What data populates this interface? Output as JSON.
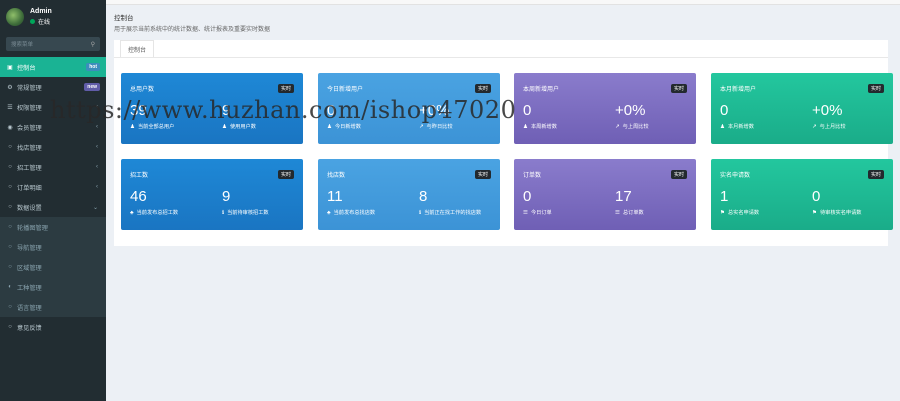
{
  "user": {
    "name": "Admin",
    "status": "在线"
  },
  "sidebar": {
    "search_placeholder": "搜索菜单",
    "items": [
      {
        "icon": "▣",
        "label": "控制台",
        "badge": "hot",
        "active": true
      },
      {
        "icon": "⚙",
        "label": "常规管理",
        "badge": "new"
      },
      {
        "icon": "☰",
        "label": "权限管理",
        "chevron": "‹"
      },
      {
        "icon": "◉",
        "label": "会员管理",
        "chevron": "‹"
      },
      {
        "icon": "○",
        "label": "找店管理",
        "chevron": "‹"
      },
      {
        "icon": "○",
        "label": "招工管理",
        "chevron": "‹"
      },
      {
        "icon": "○",
        "label": "订单明细",
        "chevron": "‹"
      },
      {
        "icon": "○",
        "label": "数据设置",
        "chevron": "⌄"
      }
    ],
    "submenu": [
      {
        "icon": "○",
        "label": "轮播图管理"
      },
      {
        "icon": "○",
        "label": "导航管理"
      },
      {
        "icon": "○",
        "label": "区域管理"
      },
      {
        "icon": "◐",
        "label": "工种管理"
      },
      {
        "icon": "○",
        "label": "语言管理"
      }
    ],
    "footer_item": {
      "icon": "○",
      "label": "意见反馈"
    }
  },
  "header": {
    "title": "控制台",
    "description": "用于展示当前系统中的统计数据、统计报表及重要实时数据"
  },
  "tabs": {
    "active": "控制台"
  },
  "watermark": "https://www.huzhan.com/ishop47020",
  "cards": [
    {
      "title": "总用户数",
      "tag": "实时",
      "color": "c-blue",
      "stats": [
        {
          "value": "39",
          "icon": "♟",
          "label": "当前全部总用户"
        },
        {
          "value": "9",
          "icon": "♟",
          "label": "使用用户数"
        }
      ]
    },
    {
      "title": "今日新增用户",
      "tag": "实时",
      "color": "c-light",
      "stats": [
        {
          "value": "0",
          "icon": "♟",
          "label": "今日新增数"
        },
        {
          "value": "+0%",
          "icon": "↗",
          "label": "与昨日比较"
        }
      ]
    },
    {
      "title": "本周新增用户",
      "tag": "实时",
      "color": "c-purple",
      "stats": [
        {
          "value": "0",
          "icon": "♟",
          "label": "本周新增数"
        },
        {
          "value": "+0%",
          "icon": "↗",
          "label": "与上周比较"
        }
      ]
    },
    {
      "title": "本月新增用户",
      "tag": "实时",
      "color": "c-green",
      "stats": [
        {
          "value": "0",
          "icon": "♟",
          "label": "本月新增数"
        },
        {
          "value": "+0%",
          "icon": "↗",
          "label": "与上月比较"
        }
      ]
    },
    {
      "title": "招工数",
      "tag": "实时",
      "color": "c-blue",
      "stats": [
        {
          "value": "46",
          "icon": "♣",
          "label": "当前发布总招工数"
        },
        {
          "value": "9",
          "icon": "ℹ",
          "label": "当前待审核招工数"
        }
      ]
    },
    {
      "title": "找店数",
      "tag": "实时",
      "color": "c-light",
      "stats": [
        {
          "value": "11",
          "icon": "♣",
          "label": "当前发布总找店数"
        },
        {
          "value": "8",
          "icon": "ℹ",
          "label": "当前正在找工作的找店数"
        }
      ]
    },
    {
      "title": "订单数",
      "tag": "实时",
      "color": "c-purple",
      "stats": [
        {
          "value": "0",
          "icon": "☰",
          "label": "今日订单"
        },
        {
          "value": "17",
          "icon": "☰",
          "label": "总订单数"
        }
      ]
    },
    {
      "title": "实名申请数",
      "tag": "实时",
      "color": "c-green",
      "stats": [
        {
          "value": "1",
          "icon": "⚑",
          "label": "总实名申请数"
        },
        {
          "value": "0",
          "icon": "⚑",
          "label": "待审核实名申请数"
        }
      ]
    }
  ]
}
